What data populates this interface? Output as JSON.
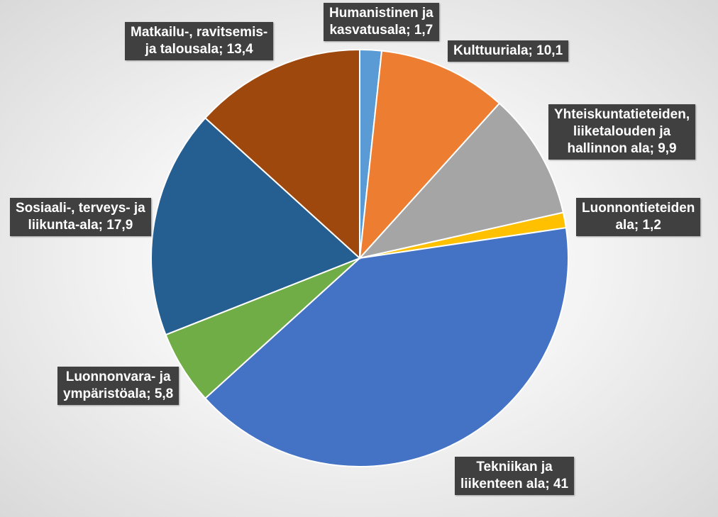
{
  "chart_data": {
    "type": "pie",
    "title": "",
    "categories": [
      "Humanistinen ja kasvatusala",
      "Kulttuuriala",
      "Yhteiskuntatieteiden, liiketalouden ja hallinnon ala",
      "Luonnontieteiden ala",
      "Tekniikan ja liikenteen ala",
      "Luonnonvara- ja ympäristöala",
      "Sosiaali-, terveys- ja liikunta-ala",
      "Matkailu-, ravitsemis- ja talousala"
    ],
    "values": [
      1.7,
      10.1,
      9.9,
      1.2,
      41,
      5.8,
      17.9,
      13.4
    ],
    "colors": [
      "#5b9bd5",
      "#ed7d31",
      "#a5a5a5",
      "#ffc000",
      "#4472c4",
      "#70ad47",
      "#255e91",
      "#9e480e"
    ],
    "data_labels": [
      "Humanistinen ja\nkasvatusala; 1,7",
      "Kulttuuriala; 10,1",
      "Yhteiskuntatieteiden,\nliiketalouden ja\nhallinnon ala; 9,9",
      "Luonnontieteiden\nala; 1,2",
      "Tekniikan ja\nliikenteen ala; 41",
      "Luonnonvara- ja\nympäristöala; 5,8",
      "Sosiaali-, terveys- ja\nliikunta-ala; 17,9",
      "Matkailu-, ravitsemis-\nja talousala; 13,4"
    ],
    "legend": "none"
  }
}
